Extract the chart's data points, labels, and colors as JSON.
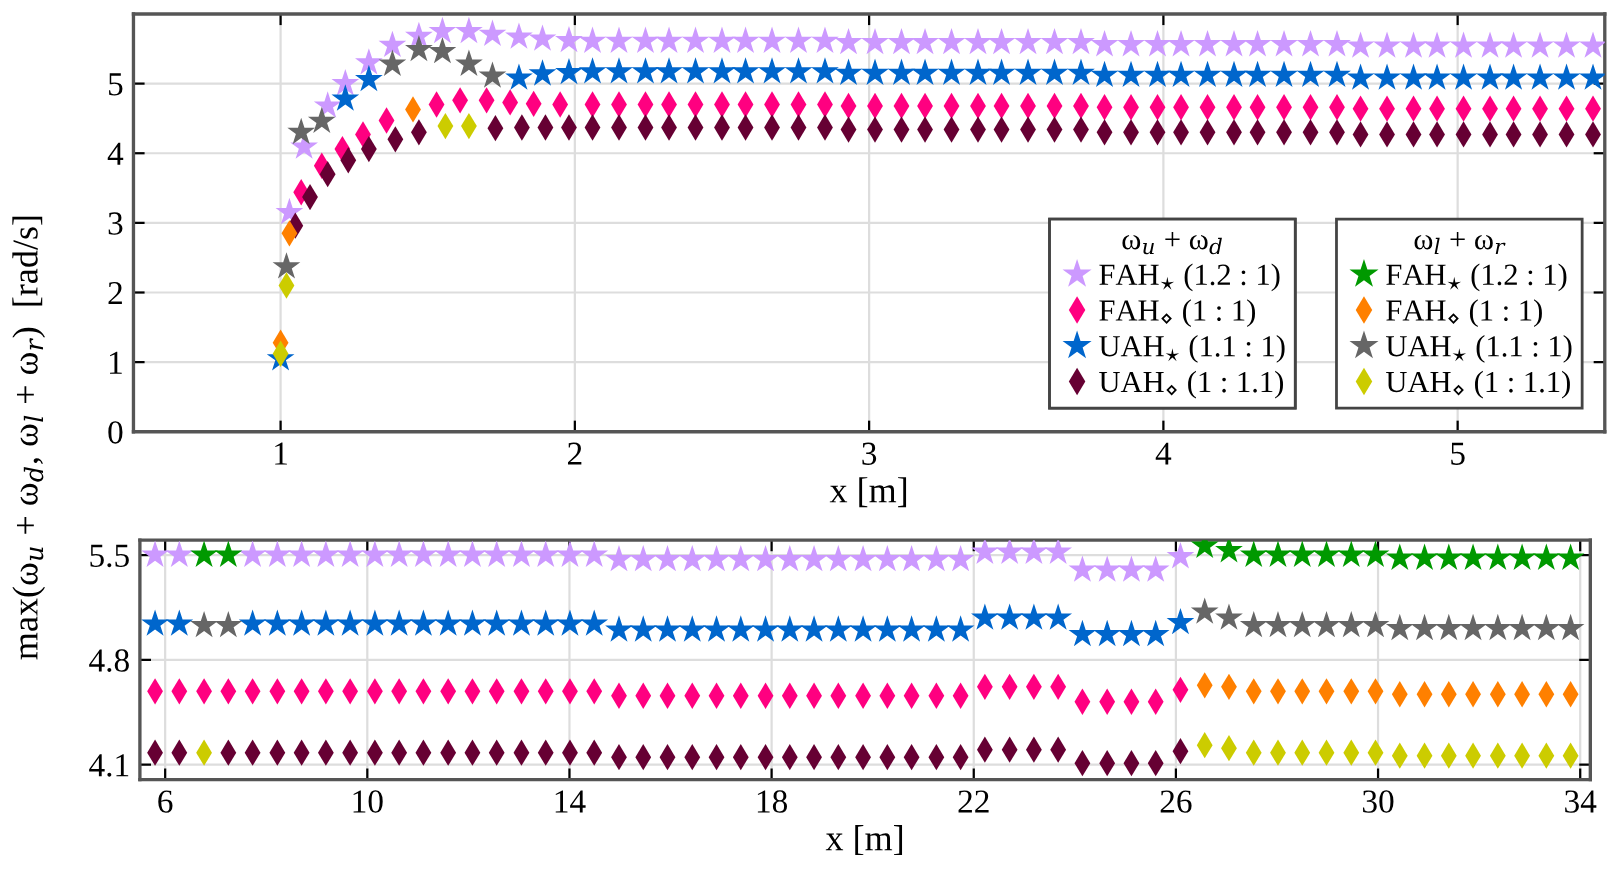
{
  "chart_data": [
    {
      "type": "scatter",
      "xlabel": "x [m]",
      "ylabel": "max(ω$_{u}$ + ω$_{d}$, ω$_{l}$ + ω$_{r}$)  [rad/s]",
      "legend_title": [
        "ω$_{u}$ + ω$_{d}$",
        "ω$_{l}$ + ω$_{r}$"
      ],
      "legend": "bottom right",
      "grid": true,
      "xlim": [
        0.5,
        5.5
      ],
      "xticks": [
        1,
        2,
        3,
        4,
        5
      ],
      "ylim": [
        0,
        6
      ],
      "yticks": [
        0,
        1,
        2,
        3,
        4,
        5
      ],
      "series": [
        {
          "name": "FAH$_{⋆}$ (1.2 : 1)",
          "color": "#cc99ff",
          "marker": "star",
          "x": [
            1.03,
            1.08,
            1.16,
            1.22,
            1.3,
            1.38,
            1.47,
            1.55,
            1.64,
            1.72,
            1.81,
            1.89,
            1.98,
            2.06,
            2.15,
            2.24,
            2.32,
            2.41,
            2.5,
            2.58,
            2.67,
            2.76,
            2.85,
            2.93,
            3.02,
            3.11,
            3.19,
            3.28,
            3.37,
            3.45,
            3.54,
            3.63,
            3.72,
            3.8,
            3.89,
            3.98,
            4.06,
            4.15,
            4.24,
            4.32,
            4.41,
            4.5,
            4.59,
            4.67,
            4.76,
            4.85,
            4.93,
            5.02,
            5.11,
            5.19,
            5.28,
            5.37,
            5.46
          ],
          "values": [
            3.15,
            4.09,
            4.68,
            5.0,
            5.3,
            5.55,
            5.68,
            5.75,
            5.75,
            5.71,
            5.67,
            5.64,
            5.62,
            5.61,
            5.61,
            5.61,
            5.61,
            5.61,
            5.61,
            5.61,
            5.61,
            5.61,
            5.61,
            5.59,
            5.59,
            5.59,
            5.59,
            5.59,
            5.59,
            5.59,
            5.59,
            5.59,
            5.59,
            5.56,
            5.56,
            5.56,
            5.56,
            5.56,
            5.56,
            5.56,
            5.56,
            5.56,
            5.56,
            5.54,
            5.54,
            5.54,
            5.54,
            5.54,
            5.54,
            5.54,
            5.54,
            5.54,
            5.54
          ]
        },
        {
          "name": "FAH$_{⋄}$ (1 : 1)",
          "color": "#ff0080",
          "marker": "diamond",
          "x": [
            1.07,
            1.14,
            1.21,
            1.28,
            1.36,
            1.53,
            1.61,
            1.7,
            1.78,
            1.86,
            1.95,
            2.06,
            2.15,
            2.24,
            2.32,
            2.41,
            2.5,
            2.58,
            2.67,
            2.76,
            2.85,
            2.93,
            3.02,
            3.11,
            3.19,
            3.28,
            3.37,
            3.45,
            3.54,
            3.63,
            3.72,
            3.8,
            3.89,
            3.98,
            4.06,
            4.15,
            4.24,
            4.32,
            4.41,
            4.5,
            4.59,
            4.67,
            4.76,
            4.85,
            4.93,
            5.02,
            5.11,
            5.19,
            5.28,
            5.37,
            5.46
          ],
          "values": [
            3.44,
            3.82,
            4.06,
            4.27,
            4.47,
            4.7,
            4.76,
            4.76,
            4.73,
            4.71,
            4.7,
            4.7,
            4.7,
            4.7,
            4.7,
            4.7,
            4.7,
            4.7,
            4.7,
            4.7,
            4.7,
            4.68,
            4.68,
            4.68,
            4.68,
            4.68,
            4.68,
            4.68,
            4.68,
            4.68,
            4.68,
            4.66,
            4.66,
            4.66,
            4.66,
            4.66,
            4.66,
            4.66,
            4.66,
            4.66,
            4.66,
            4.64,
            4.64,
            4.64,
            4.64,
            4.64,
            4.64,
            4.64,
            4.64,
            4.64,
            4.64
          ]
        },
        {
          "name": "UAH$_{⋆}$ (1.1 : 1)",
          "color": "#0066cc",
          "marker": "star",
          "x": [
            1.0,
            1.22,
            1.3,
            1.81,
            1.89,
            1.98,
            2.06,
            2.15,
            2.24,
            2.32,
            2.41,
            2.5,
            2.58,
            2.67,
            2.76,
            2.85,
            2.93,
            3.02,
            3.11,
            3.19,
            3.28,
            3.37,
            3.45,
            3.54,
            3.63,
            3.72,
            3.8,
            3.89,
            3.98,
            4.06,
            4.15,
            4.24,
            4.32,
            4.41,
            4.5,
            4.59,
            4.67,
            4.76,
            4.85,
            4.93,
            5.02,
            5.11,
            5.19,
            5.28,
            5.37,
            5.46
          ],
          "values": [
            1.05,
            4.78,
            5.06,
            5.08,
            5.14,
            5.16,
            5.17,
            5.17,
            5.17,
            5.17,
            5.17,
            5.17,
            5.17,
            5.17,
            5.17,
            5.17,
            5.15,
            5.15,
            5.15,
            5.15,
            5.15,
            5.15,
            5.15,
            5.15,
            5.15,
            5.15,
            5.12,
            5.12,
            5.12,
            5.12,
            5.12,
            5.12,
            5.12,
            5.12,
            5.12,
            5.12,
            5.08,
            5.08,
            5.08,
            5.08,
            5.08,
            5.08,
            5.08,
            5.08,
            5.08,
            5.08
          ]
        },
        {
          "name": "UAH$_{⋄}$ (1 : 1.1)",
          "color": "#660033",
          "marker": "diamond",
          "x": [
            1.05,
            1.1,
            1.16,
            1.23,
            1.3,
            1.39,
            1.47,
            1.73,
            1.82,
            1.9,
            1.98,
            2.06,
            2.15,
            2.24,
            2.32,
            2.41,
            2.5,
            2.58,
            2.67,
            2.76,
            2.85,
            2.93,
            3.02,
            3.11,
            3.19,
            3.28,
            3.37,
            3.45,
            3.54,
            3.63,
            3.72,
            3.8,
            3.89,
            3.98,
            4.06,
            4.15,
            4.24,
            4.32,
            4.41,
            4.5,
            4.59,
            4.67,
            4.76,
            4.85,
            4.93,
            5.02,
            5.11,
            5.19,
            5.28,
            5.37,
            5.46
          ],
          "values": [
            2.96,
            3.37,
            3.7,
            3.9,
            4.06,
            4.2,
            4.3,
            4.36,
            4.37,
            4.37,
            4.37,
            4.37,
            4.37,
            4.37,
            4.37,
            4.37,
            4.37,
            4.37,
            4.37,
            4.37,
            4.37,
            4.34,
            4.34,
            4.34,
            4.34,
            4.34,
            4.34,
            4.34,
            4.34,
            4.34,
            4.34,
            4.3,
            4.3,
            4.3,
            4.3,
            4.3,
            4.3,
            4.3,
            4.3,
            4.3,
            4.3,
            4.27,
            4.27,
            4.27,
            4.27,
            4.27,
            4.27,
            4.27,
            4.27,
            4.27,
            4.27
          ]
        },
        {
          "name": "FAH$_{⋆}$ (1.2 : 1)",
          "color": "#009900",
          "marker": "star"
        },
        {
          "name": "FAH$_{⋄}$ (1 : 1)",
          "color": "#ff8000",
          "marker": "diamond",
          "x": [
            1.0,
            1.03,
            1.45
          ],
          "values": [
            1.28,
            2.85,
            4.63
          ]
        },
        {
          "name": "UAH$_{⋆}$ (1.1 : 1)",
          "color": "#666666",
          "marker": "star",
          "x": [
            1.02,
            1.07,
            1.14,
            1.38,
            1.47,
            1.55,
            1.64,
            1.72
          ],
          "values": [
            2.37,
            4.3,
            4.46,
            5.28,
            5.49,
            5.46,
            5.28,
            5.11
          ]
        },
        {
          "name": "UAH$_{⋄}$ (1 : 1.1)",
          "color": "#cccc00",
          "marker": "diamond",
          "x": [
            1.0,
            1.02,
            1.56,
            1.64
          ],
          "values": [
            1.12,
            2.1,
            4.39,
            4.39
          ]
        }
      ]
    },
    {
      "type": "scatter",
      "xlabel": "x [m]",
      "grid": true,
      "xlim": [
        5.5,
        34.2
      ],
      "xticks": [
        6,
        10,
        14,
        18,
        22,
        26,
        30,
        34
      ],
      "ylim": [
        4.0,
        5.6
      ],
      "yticks": [
        4.1,
        4.8,
        5.5
      ],
      "x": [
        5.8,
        6.28,
        6.77,
        7.25,
        7.73,
        8.22,
        8.7,
        9.18,
        9.66,
        10.15,
        10.63,
        11.11,
        11.6,
        12.08,
        12.56,
        13.05,
        13.53,
        14.01,
        14.49,
        14.98,
        15.46,
        15.94,
        16.43,
        16.91,
        17.39,
        17.88,
        18.36,
        18.84,
        19.32,
        19.81,
        20.29,
        20.77,
        21.26,
        21.74,
        22.22,
        22.71,
        23.19,
        23.67,
        24.15,
        24.64,
        25.12,
        25.6,
        26.09,
        26.57,
        27.05,
        27.54,
        28.02,
        28.5,
        28.98,
        29.47,
        29.95,
        30.43,
        30.92,
        31.4,
        31.88,
        32.37,
        32.85,
        33.33,
        33.81
      ],
      "series": [
        {
          "color": "#cc99ff",
          "marker": "star",
          "values": [
            5.5,
            5.5,
            null,
            null,
            5.5,
            5.5,
            5.5,
            5.5,
            5.5,
            5.5,
            5.5,
            5.5,
            5.5,
            5.5,
            5.5,
            5.5,
            5.5,
            5.5,
            5.5,
            5.47,
            5.47,
            5.47,
            5.47,
            5.47,
            5.47,
            5.47,
            5.47,
            5.47,
            5.47,
            5.47,
            5.47,
            5.47,
            5.47,
            5.47,
            5.52,
            5.52,
            5.52,
            5.52,
            5.4,
            5.4,
            5.4,
            5.4,
            5.49,
            null,
            null,
            null,
            null,
            null,
            null,
            null,
            null,
            null,
            null,
            null,
            null,
            null,
            null,
            null,
            null
          ]
        },
        {
          "color": "#ff0080",
          "marker": "diamond",
          "values": [
            4.59,
            4.59,
            4.59,
            4.59,
            4.59,
            4.59,
            4.59,
            4.59,
            4.59,
            4.59,
            4.59,
            4.59,
            4.59,
            4.59,
            4.59,
            4.59,
            4.59,
            4.59,
            4.59,
            4.56,
            4.56,
            4.56,
            4.56,
            4.56,
            4.56,
            4.56,
            4.56,
            4.56,
            4.56,
            4.56,
            4.56,
            4.56,
            4.56,
            4.56,
            4.62,
            4.62,
            4.62,
            4.62,
            4.52,
            4.52,
            4.52,
            4.52,
            4.6,
            null,
            null,
            null,
            null,
            null,
            null,
            null,
            null,
            null,
            null,
            null,
            null,
            null,
            null,
            null,
            null
          ]
        },
        {
          "color": "#0066cc",
          "marker": "star",
          "values": [
            5.04,
            5.04,
            null,
            null,
            5.04,
            5.04,
            5.04,
            5.04,
            5.04,
            5.04,
            5.04,
            5.04,
            5.04,
            5.04,
            5.04,
            5.04,
            5.04,
            5.04,
            5.04,
            5.0,
            5.0,
            5.0,
            5.0,
            5.0,
            5.0,
            5.0,
            5.0,
            5.0,
            5.0,
            5.0,
            5.0,
            5.0,
            5.0,
            5.0,
            5.08,
            5.08,
            5.08,
            5.08,
            4.97,
            4.97,
            4.97,
            4.97,
            5.05,
            null,
            null,
            null,
            null,
            null,
            null,
            null,
            null,
            null,
            null,
            null,
            null,
            null,
            null,
            null,
            null
          ]
        },
        {
          "color": "#660033",
          "marker": "diamond",
          "values": [
            4.18,
            4.18,
            null,
            4.18,
            4.18,
            4.18,
            4.18,
            4.18,
            4.18,
            4.18,
            4.18,
            4.18,
            4.18,
            4.18,
            4.18,
            4.18,
            4.18,
            4.18,
            4.18,
            4.15,
            4.15,
            4.15,
            4.15,
            4.15,
            4.15,
            4.15,
            4.15,
            4.15,
            4.15,
            4.15,
            4.15,
            4.15,
            4.15,
            4.15,
            4.2,
            4.2,
            4.2,
            4.2,
            4.11,
            4.11,
            4.11,
            4.11,
            4.19,
            null,
            null,
            null,
            null,
            null,
            null,
            null,
            null,
            null,
            null,
            null,
            null,
            null,
            null,
            null,
            null
          ]
        },
        {
          "color": "#009900",
          "marker": "star",
          "values": [
            null,
            null,
            5.5,
            5.5,
            null,
            null,
            null,
            null,
            null,
            null,
            null,
            null,
            null,
            null,
            null,
            null,
            null,
            null,
            null,
            null,
            null,
            null,
            null,
            null,
            null,
            null,
            null,
            null,
            null,
            null,
            null,
            null,
            null,
            null,
            null,
            null,
            null,
            null,
            null,
            null,
            null,
            null,
            null,
            5.56,
            5.53,
            5.5,
            5.5,
            5.5,
            5.5,
            5.5,
            5.5,
            5.48,
            5.48,
            5.48,
            5.48,
            5.48,
            5.48,
            5.48,
            5.48
          ]
        },
        {
          "color": "#ff8000",
          "marker": "diamond",
          "values": [
            null,
            null,
            null,
            null,
            null,
            null,
            null,
            null,
            null,
            null,
            null,
            null,
            null,
            null,
            null,
            null,
            null,
            null,
            null,
            null,
            null,
            null,
            null,
            null,
            null,
            null,
            null,
            null,
            null,
            null,
            null,
            null,
            null,
            null,
            null,
            null,
            null,
            null,
            null,
            null,
            null,
            null,
            null,
            4.63,
            4.62,
            4.59,
            4.59,
            4.59,
            4.59,
            4.59,
            4.59,
            4.57,
            4.57,
            4.57,
            4.57,
            4.57,
            4.57,
            4.57,
            4.57
          ]
        },
        {
          "color": "#666666",
          "marker": "star",
          "values": [
            null,
            null,
            5.03,
            5.03,
            null,
            null,
            null,
            null,
            null,
            null,
            null,
            null,
            null,
            null,
            null,
            null,
            null,
            null,
            null,
            null,
            null,
            null,
            null,
            null,
            null,
            null,
            null,
            null,
            null,
            null,
            null,
            null,
            null,
            null,
            null,
            null,
            null,
            null,
            null,
            null,
            null,
            null,
            null,
            5.12,
            5.08,
            5.03,
            5.03,
            5.03,
            5.03,
            5.03,
            5.03,
            5.01,
            5.01,
            5.01,
            5.01,
            5.01,
            5.01,
            5.01,
            5.01
          ]
        },
        {
          "color": "#cccc00",
          "marker": "diamond",
          "values": [
            null,
            null,
            4.18,
            null,
            null,
            null,
            null,
            null,
            null,
            null,
            null,
            null,
            null,
            null,
            null,
            null,
            null,
            null,
            null,
            null,
            null,
            null,
            null,
            null,
            null,
            null,
            null,
            null,
            null,
            null,
            null,
            null,
            null,
            null,
            null,
            null,
            null,
            null,
            null,
            null,
            null,
            null,
            null,
            4.23,
            4.21,
            4.18,
            4.18,
            4.18,
            4.18,
            4.18,
            4.18,
            4.16,
            4.16,
            4.16,
            4.16,
            4.16,
            4.16,
            4.16,
            4.16
          ]
        }
      ]
    }
  ]
}
